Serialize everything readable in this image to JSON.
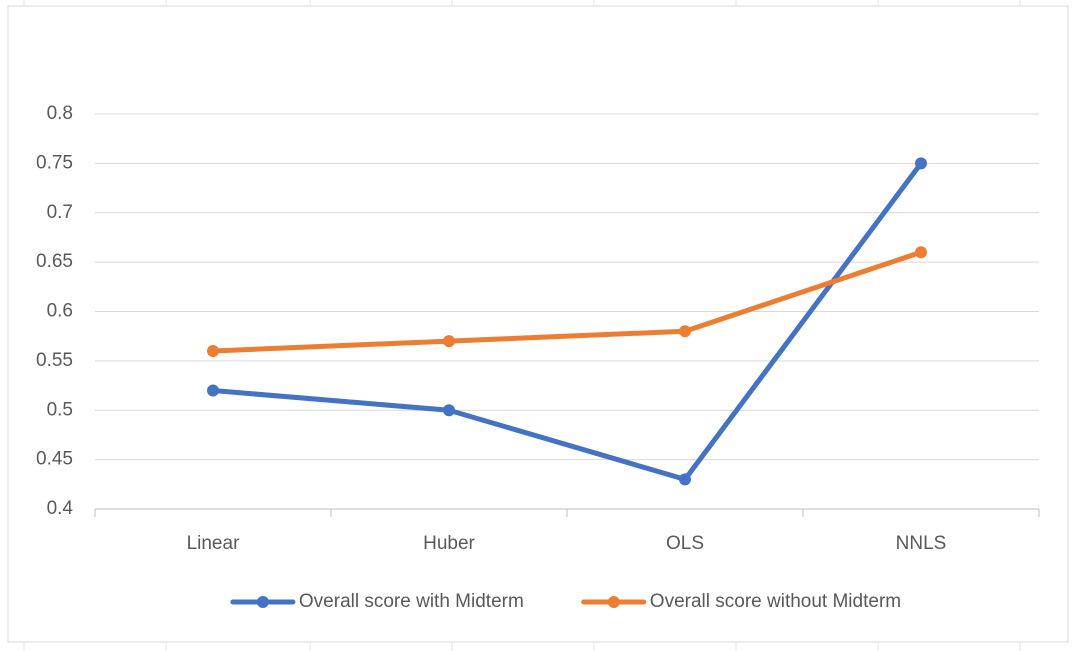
{
  "chart_data": {
    "type": "line",
    "categories": [
      "Linear",
      "Huber",
      "OLS",
      "NNLS"
    ],
    "series": [
      {
        "name": "Overall score with Midterm",
        "color": "#4472c4",
        "values": [
          0.52,
          0.5,
          0.43,
          0.75
        ]
      },
      {
        "name": "Overall score without Midterm",
        "color": "#ed7d31",
        "values": [
          0.56,
          0.57,
          0.58,
          0.66
        ]
      }
    ],
    "ylim": [
      0.4,
      0.8
    ],
    "yticks": [
      0.4,
      0.45,
      0.5,
      0.55,
      0.6,
      0.65,
      0.7,
      0.75,
      0.8
    ],
    "grid": true,
    "legend": "bottom"
  }
}
